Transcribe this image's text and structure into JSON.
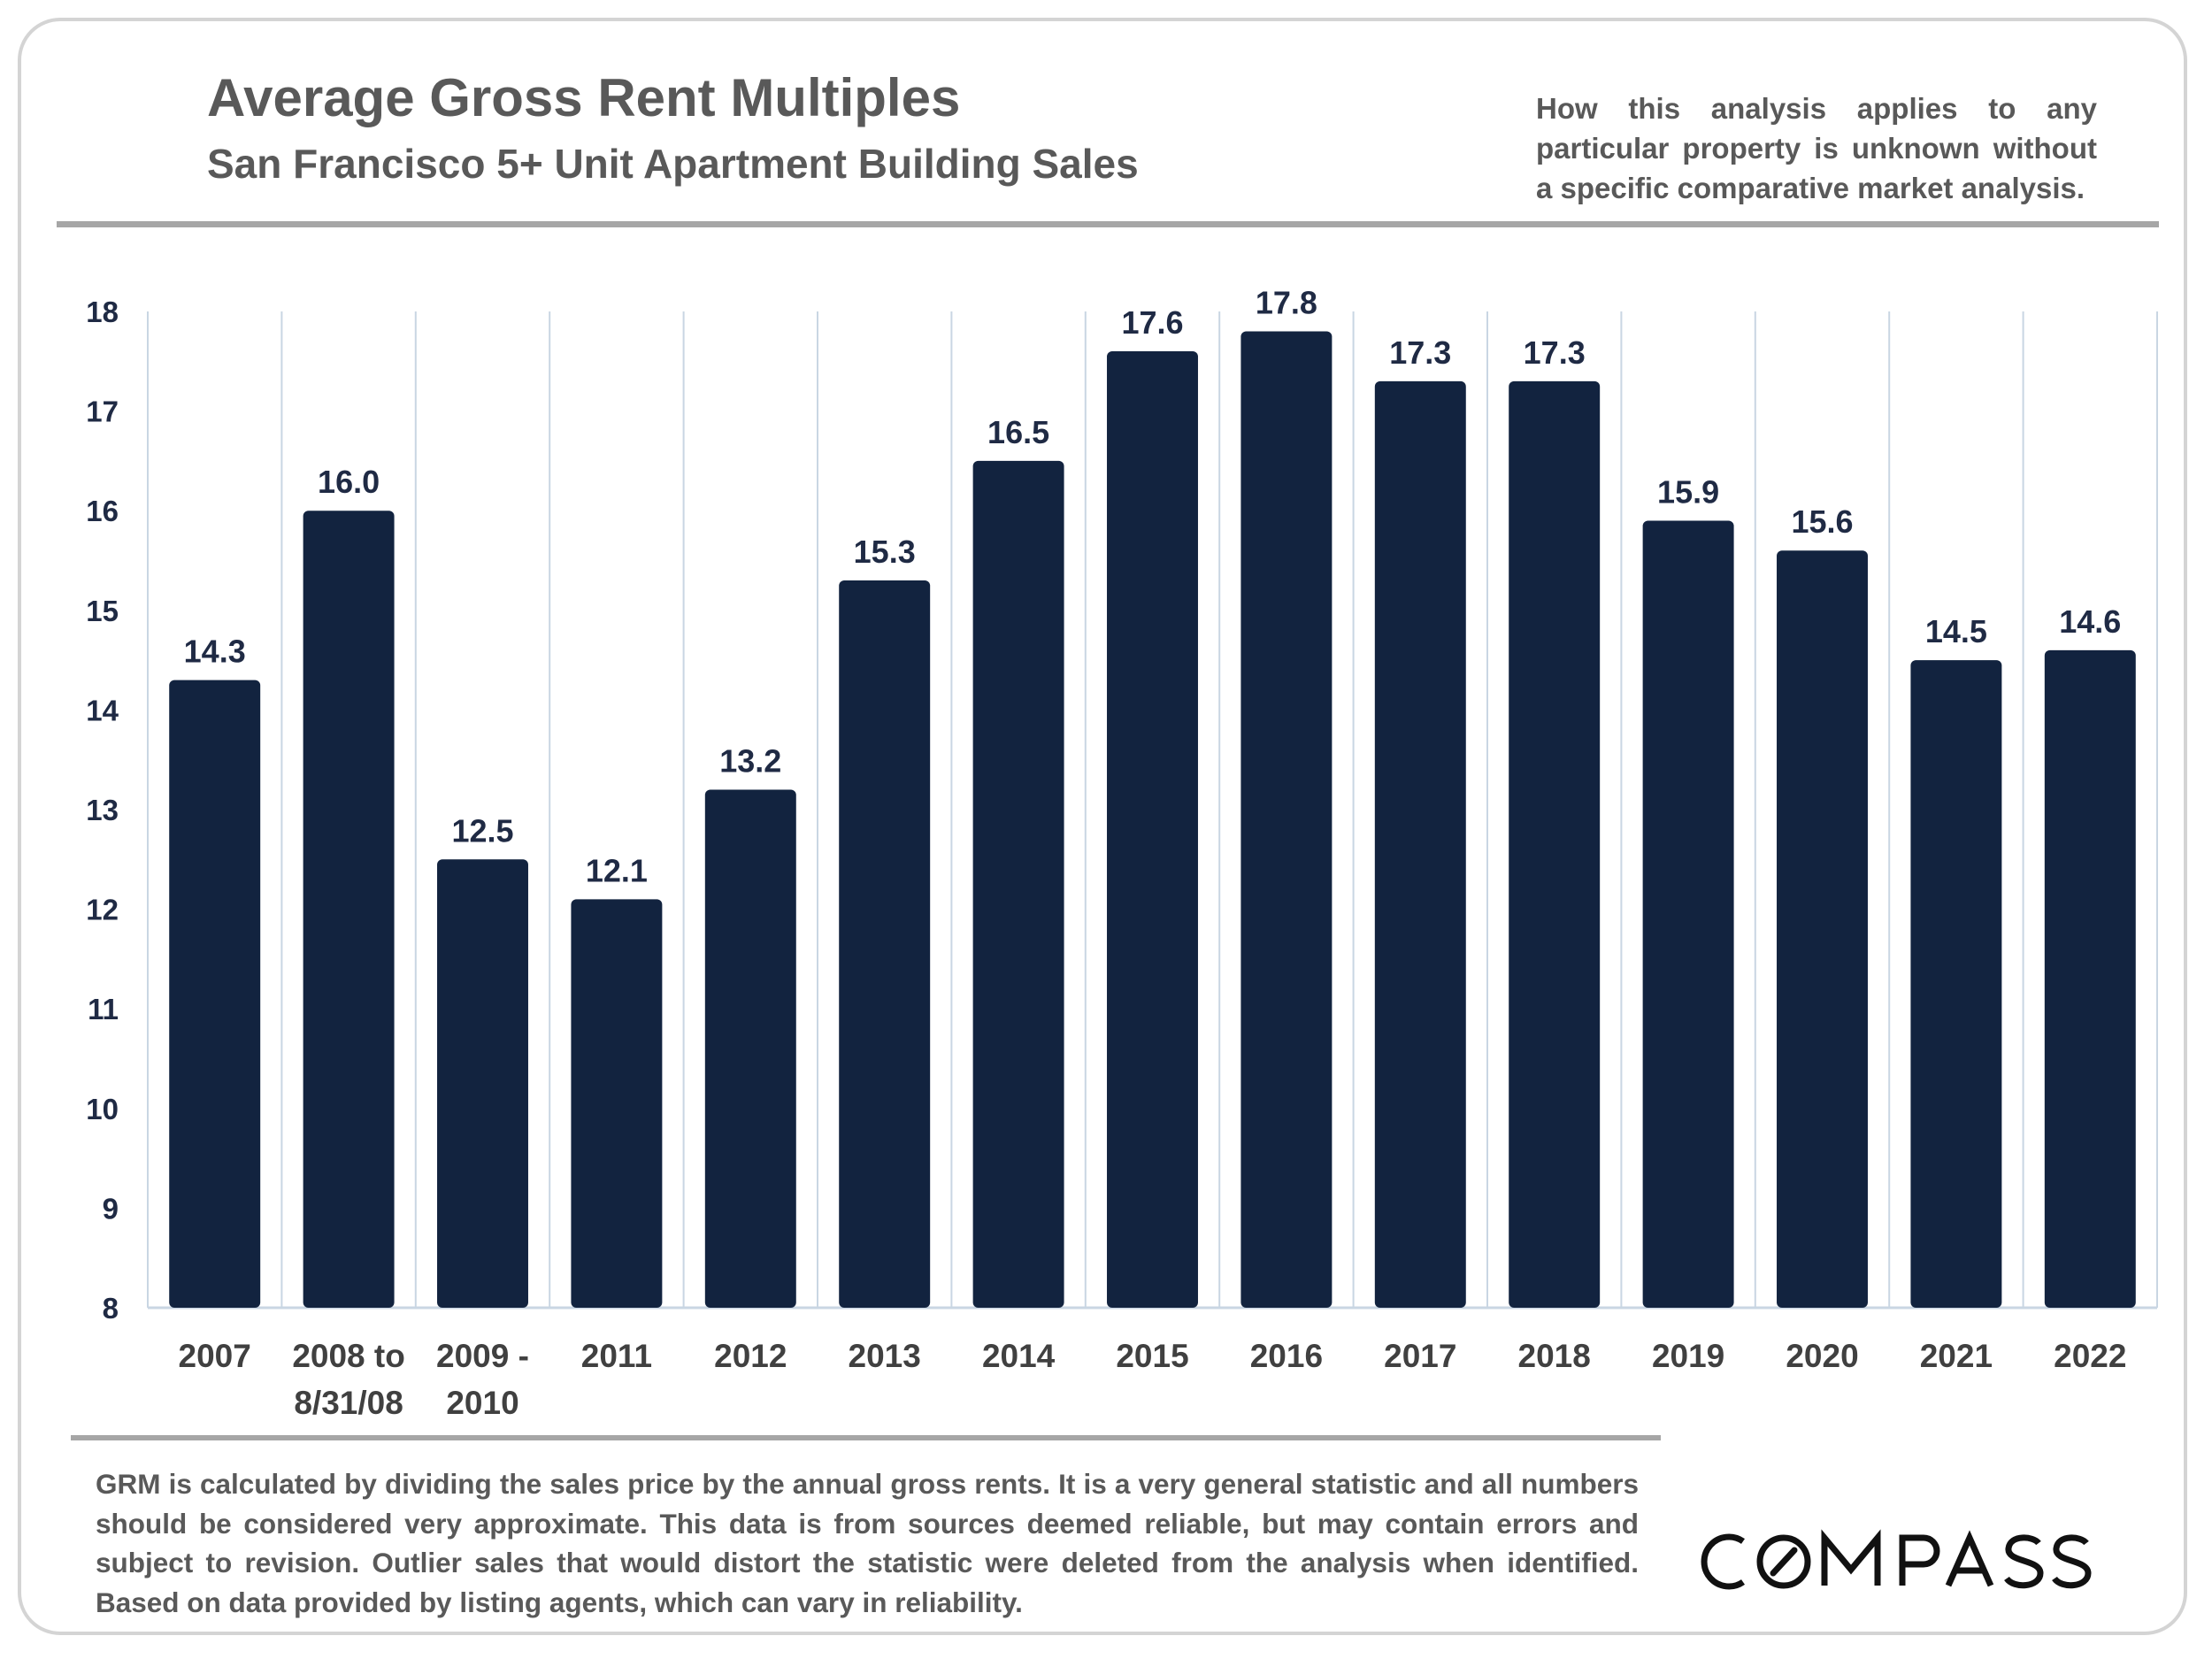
{
  "header": {
    "title": "Average Gross Rent Multiples",
    "subtitle": "San Francisco 5+ Unit Apartment Building Sales",
    "disclaimer": "How this analysis applies to any particular property is unknown without a specific comparative market analysis."
  },
  "footer": {
    "note": "GRM is calculated by dividing the sales price by the annual gross rents. It is a very general statistic and all numbers should be considered very approximate. This data is from sources deemed reliable, but may contain errors and subject to revision. Outlier sales that would distort the statistic were deleted from the analysis when identified. Based on data provided by listing agents, which can vary in reliability.",
    "logo_text": "COMPASS"
  },
  "colors": {
    "bar": "#12233f",
    "text_gray": "#595959",
    "rule": "#a6a6a6",
    "gridline": "#c9d6e3"
  },
  "chart_data": {
    "type": "bar",
    "title": "Average Gross Rent Multiples",
    "subtitle": "San Francisco 5+ Unit Apartment Building Sales",
    "categories": [
      [
        "2007"
      ],
      [
        "2008 to",
        "8/31/08"
      ],
      [
        "2009 -",
        "2010"
      ],
      [
        "2011"
      ],
      [
        "2012"
      ],
      [
        "2013"
      ],
      [
        "2014"
      ],
      [
        "2015"
      ],
      [
        "2016"
      ],
      [
        "2017"
      ],
      [
        "2018"
      ],
      [
        "2019"
      ],
      [
        "2020"
      ],
      [
        "2021"
      ],
      [
        "2022"
      ]
    ],
    "values": [
      14.3,
      16.0,
      12.5,
      12.1,
      13.2,
      15.3,
      16.5,
      17.6,
      17.8,
      17.3,
      17.3,
      15.9,
      15.6,
      14.5,
      14.6
    ],
    "value_labels": [
      "14.3",
      "16.0",
      "12.5",
      "12.1",
      "13.2",
      "15.3",
      "16.5",
      "17.6",
      "17.8",
      "17.3",
      "17.3",
      "15.9",
      "15.6",
      "14.5",
      "14.6"
    ],
    "ylim": [
      8,
      18
    ],
    "yticks": [
      "8",
      "9",
      "10",
      "11",
      "12",
      "13",
      "14",
      "15",
      "16",
      "17",
      "18"
    ],
    "xlabel": "",
    "ylabel": "",
    "grid": "vertical category separators",
    "legend": "none"
  }
}
